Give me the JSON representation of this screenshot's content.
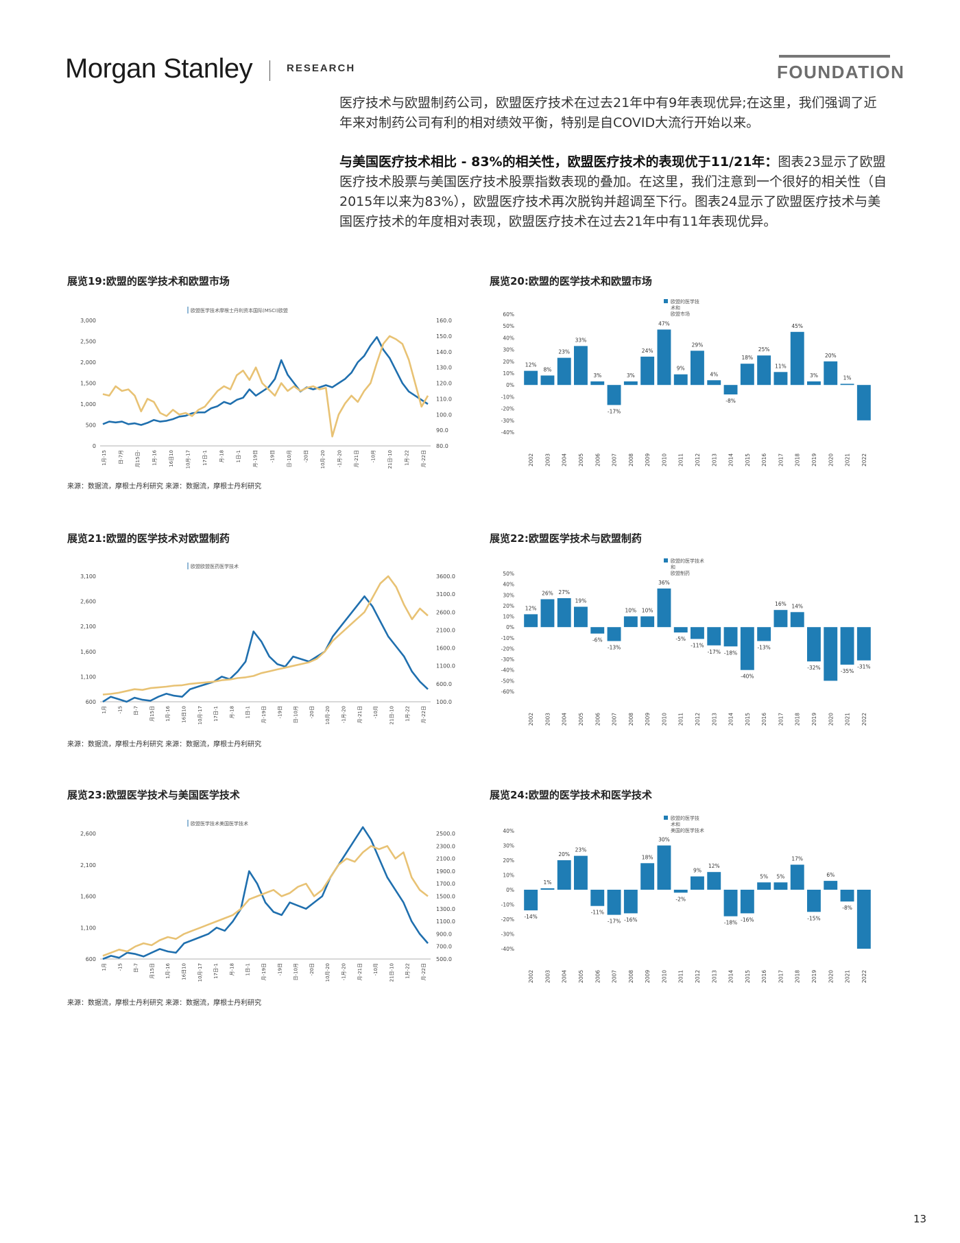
{
  "header": {
    "logo": "Morgan Stanley",
    "research": "RESEARCH",
    "foundation": "FOUNDATION"
  },
  "intro": {
    "p1": "医疗技术与欧盟制药公司，欧盟医疗技术在过去21年中有9年表现优异;在这里，我们强调了近年来对制药公司有利的相对绩效平衡，特别是自COVID大流行开始以来。",
    "p2_bold": "与美国医疗技术相比 - 83%的相关性，欧盟医疗技术的表现优于11/21年：",
    "p2": "图表23显示了欧盟医疗技术股票与美国医疗技术股票指数表现的叠加。在这里，我们注意到一个很好的相关性（自2015年以来为83%），欧盟医疗技术再次脱钩并超调至下行。图表24显示了欧盟医疗技术与美国医疗技术的年度相对表现，欧盟医疗技术在过去21年中有11年表现优异。"
  },
  "exhibits": {
    "e19": {
      "title": "展览19:欧盟的医学技术和欧盟市场",
      "legend": "欧盟医学技术摩根士丹利资本国际(MSCI)欧盟"
    },
    "e20": {
      "title": "展览20:欧盟的医学技术和欧盟市场",
      "legend": [
        "欧盟的医学技",
        "术和",
        "欧盟市场"
      ]
    },
    "e21": {
      "title": "展览21:欧盟的医学技术对欧盟制药",
      "legend": "欧盟欧盟医药医学技术"
    },
    "e22": {
      "title": "展览22:欧盟医学技术与欧盟制药",
      "legend": [
        "欧盟的医学技术",
        "和",
        "欧盟制药"
      ]
    },
    "e23": {
      "title": "展览23:欧盟医学技术与美国医学技术",
      "legend": "欧盟医学技术美国医学技术"
    },
    "e24": {
      "title": "展览24:欧盟的医学技术和医学技术",
      "legend": [
        "欧盟的医学技",
        "术和",
        "美国的医学技术"
      ]
    },
    "source": "来源：数据流，摩根士丹利研究 来源：数据流，摩根士丹利研究"
  },
  "chart_data": [
    {
      "id": "e19",
      "type": "line",
      "left_ticks": [
        "3,000",
        "2,500",
        "2,000",
        "1,500",
        "1,000",
        "500",
        "0"
      ],
      "right_ticks": [
        "160.0",
        "150.0",
        "140.0",
        "130.0",
        "120.0",
        "110.0",
        "100.0",
        "90.0",
        "80.0"
      ],
      "x_ticks": [
        "1月-15",
        "日-7月",
        "月15日-",
        "1月-16",
        "16日10",
        "10月-17",
        "17日-1",
        "月-18",
        "1日-1",
        "月-19日",
        "-19日",
        "日-10月",
        "-20日",
        "10月-20",
        "-1月-20",
        "月-21日",
        "-10月",
        "21日-10",
        "1月-22",
        "月-22日"
      ],
      "series": [
        {
          "name": "欧盟医学技术",
          "color": "#1f6fae",
          "axis": "left",
          "values": [
            520,
            580,
            560,
            580,
            520,
            540,
            500,
            550,
            620,
            580,
            600,
            640,
            700,
            720,
            780,
            800,
            800,
            900,
            950,
            1050,
            1000,
            1100,
            1150,
            1350,
            1200,
            1300,
            1400,
            1600,
            2050,
            1700,
            1500,
            1300,
            1400,
            1350,
            1400,
            1450,
            1400,
            1500,
            1600,
            1750,
            2000,
            2150,
            2400,
            2600,
            2300,
            2100,
            1800,
            1500,
            1300,
            1200,
            1100,
            1000
          ]
        },
        {
          "name": "摩根士丹利资本国际(MSCI)欧盟",
          "color": "#e8c274",
          "axis": "right",
          "values": [
            113,
            112,
            118,
            115,
            116,
            112,
            102,
            110,
            108,
            101,
            99,
            103,
            100,
            101,
            99,
            103,
            105,
            110,
            115,
            118,
            116,
            125,
            128,
            122,
            130,
            120,
            116,
            112,
            120,
            115,
            118,
            115,
            117,
            118,
            116,
            117,
            86,
            100,
            107,
            112,
            108,
            115,
            120,
            133,
            145,
            150,
            148,
            145,
            135,
            120,
            105,
            112
          ]
        }
      ]
    },
    {
      "id": "e20",
      "type": "bar",
      "color": "#1f7db5",
      "categories": [
        "2002",
        "2003",
        "2004",
        "2005",
        "2006",
        "2007",
        "2008",
        "2009",
        "2010",
        "2011",
        "2012",
        "2013",
        "2014",
        "2015",
        "2016",
        "2017",
        "2018",
        "2019",
        "2020",
        "2021",
        "2022"
      ],
      "values": [
        12,
        8,
        23,
        33,
        3,
        -17,
        3,
        24,
        47,
        9,
        29,
        4,
        -8,
        18,
        25,
        11,
        45,
        3,
        20,
        1,
        -30
      ],
      "labels": [
        "12%",
        "8%",
        "23%",
        "33%",
        "3%",
        "-17%",
        "3%",
        "24%",
        "47%",
        "9%",
        "29%",
        "4%",
        "-8%",
        "18%",
        "25%",
        "11%",
        "45%",
        "3%",
        "20%",
        "1%",
        ""
      ],
      "y_ticks": [
        "60%",
        "50%",
        "40%",
        "30%",
        "20%",
        "10%",
        "0%",
        "-10%",
        "-20%",
        "-30%",
        "-40%"
      ],
      "ylim": [
        -40,
        60
      ]
    },
    {
      "id": "e21",
      "type": "line",
      "left_ticks": [
        "3,100",
        "2,600",
        "2,100",
        "1,600",
        "1,100",
        "600"
      ],
      "right_ticks": [
        "3600.0",
        "3100.0",
        "2600.0",
        "2100.0",
        "1600.0",
        "1100.0",
        "600.0",
        "100.0"
      ],
      "x_ticks": [
        "1月",
        "-15",
        "日-7",
        "月15日",
        "1月-16",
        "16日10",
        "10月-17",
        "17日-1",
        "月-18",
        "1日-1",
        "月-19日",
        "-19日",
        "日-10月",
        "-20日",
        "10月-20",
        "-1月-20",
        "月-21日",
        "-10月",
        "21日-10",
        "1月-22",
        "月-22日"
      ],
      "series": [
        {
          "name": "欧盟医学技术",
          "color": "#1f6fae",
          "axis": "left",
          "values": [
            600,
            700,
            650,
            600,
            680,
            640,
            620,
            700,
            760,
            720,
            700,
            850,
            900,
            950,
            1000,
            1100,
            1050,
            1200,
            1400,
            2000,
            1800,
            1500,
            1350,
            1300,
            1500,
            1450,
            1400,
            1500,
            1600,
            1900,
            2100,
            2300,
            2500,
            2700,
            2500,
            2200,
            1900,
            1700,
            1500,
            1200,
            1000,
            850
          ]
        },
        {
          "name": "欧盟医药",
          "color": "#e8c274",
          "axis": "right",
          "values": [
            300,
            320,
            350,
            400,
            450,
            430,
            480,
            500,
            520,
            550,
            560,
            600,
            620,
            640,
            660,
            700,
            720,
            760,
            780,
            820,
            900,
            950,
            1000,
            1050,
            1100,
            1150,
            1200,
            1300,
            1500,
            1800,
            2000,
            2200,
            2400,
            2600,
            3000,
            3400,
            3600,
            3300,
            2800,
            2400,
            2700,
            2500
          ]
        }
      ]
    },
    {
      "id": "e22",
      "type": "bar",
      "color": "#1f7db5",
      "categories": [
        "2002",
        "2003",
        "2004",
        "2005",
        "2006",
        "2007",
        "2008",
        "2009",
        "2010",
        "2011",
        "2012",
        "2013",
        "2014",
        "2015",
        "2016",
        "2017",
        "2018",
        "2019",
        "2020",
        "2021",
        "2022"
      ],
      "values": [
        12,
        26,
        27,
        19,
        -6,
        -13,
        10,
        10,
        36,
        -5,
        -11,
        -17,
        -18,
        -40,
        -13,
        16,
        14,
        -32,
        -50,
        -35,
        -31
      ],
      "labels": [
        "12%",
        "26%",
        "27%",
        "19%",
        "-6%",
        "-13%",
        "10%",
        "10%",
        "36%",
        "-5%",
        "-11%",
        "-17%",
        "-18%",
        "-40%",
        "-13%",
        "16%",
        "14%",
        "-32%",
        "",
        "-35%",
        "-31%"
      ],
      "y_ticks": [
        "50%",
        "40%",
        "30%",
        "20%",
        "10%",
        "0%",
        "-10%",
        "-20%",
        "-30%",
        "-40%",
        "-50%",
        "-60%"
      ],
      "ylim": [
        -60,
        50
      ]
    },
    {
      "id": "e23",
      "type": "line",
      "left_ticks": [
        "2,600",
        "2,100",
        "1,600",
        "1,100",
        "600"
      ],
      "right_ticks": [
        "2500.0",
        "2300.0",
        "2100.0",
        "1900.0",
        "1700.0",
        "1500.0",
        "1300.0",
        "1100.0",
        "900.0",
        "700.0",
        "500.0"
      ],
      "x_ticks": [
        "1月",
        "-15",
        "日-7",
        "月15日",
        "1月-16",
        "16日10",
        "10月-17",
        "17日-1",
        "月-18",
        "1日-1",
        "月-19日",
        "-19日",
        "日-10月",
        "-20日",
        "10月-20",
        "-1月-20",
        "月-21日",
        "-10月",
        "21日-10",
        "1月-22",
        "月-22日"
      ],
      "series": [
        {
          "name": "欧盟医学技术",
          "color": "#1f6fae",
          "axis": "left",
          "values": [
            600,
            650,
            620,
            700,
            680,
            640,
            700,
            760,
            720,
            700,
            850,
            900,
            950,
            1000,
            1100,
            1050,
            1200,
            1400,
            2000,
            1800,
            1500,
            1350,
            1300,
            1500,
            1450,
            1400,
            1500,
            1600,
            1900,
            2100,
            2300,
            2500,
            2700,
            2500,
            2200,
            1900,
            1700,
            1500,
            1200,
            1000,
            850
          ]
        },
        {
          "name": "美国医学技术",
          "color": "#e8c274",
          "axis": "right",
          "values": [
            550,
            600,
            650,
            620,
            700,
            750,
            720,
            800,
            850,
            820,
            900,
            950,
            1000,
            1050,
            1100,
            1150,
            1200,
            1300,
            1450,
            1500,
            1550,
            1600,
            1500,
            1550,
            1650,
            1700,
            1500,
            1600,
            1800,
            2000,
            2100,
            2050,
            2200,
            2300,
            2250,
            2300,
            2100,
            2200,
            1800,
            1600,
            1500
          ]
        }
      ]
    },
    {
      "id": "e24",
      "type": "bar",
      "color": "#1f7db5",
      "categories": [
        "2002",
        "2003",
        "2004",
        "2005",
        "2006",
        "2007",
        "2008",
        "2009",
        "2010",
        "2011",
        "2012",
        "2013",
        "2014",
        "2015",
        "2016",
        "2017",
        "2018",
        "2019",
        "2020",
        "2021",
        "2022"
      ],
      "values": [
        -14,
        1,
        20,
        23,
        -11,
        -17,
        -16,
        18,
        30,
        -2,
        9,
        12,
        -18,
        -16,
        5,
        5,
        17,
        -15,
        6,
        -8,
        -40
      ],
      "labels": [
        "-14%",
        "1%",
        "20%",
        "23%",
        "-11%",
        "-17%",
        "-16%",
        "18%",
        "30%",
        "-2%",
        "9%",
        "12%",
        "-18%",
        "-16%",
        "5%",
        "5%",
        "17%",
        "-15%",
        "6%",
        "-8%",
        ""
      ],
      "y_ticks": [
        "40%",
        "30%",
        "20%",
        "10%",
        "0%",
        "-10%",
        "-20%",
        "-30%",
        "-40%"
      ],
      "ylim": [
        -40,
        40
      ]
    }
  ],
  "page_number": "13"
}
